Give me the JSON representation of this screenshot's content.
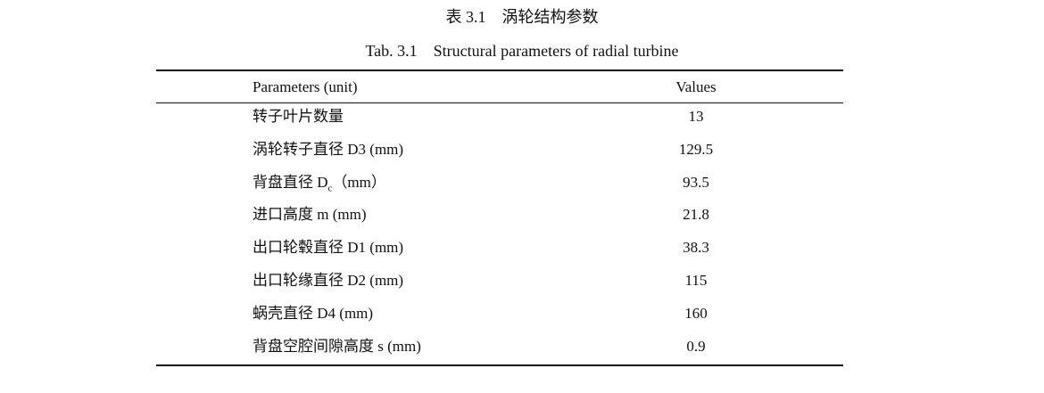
{
  "table": {
    "title": "表 3.1　涡轮结构参数",
    "subtitle": "Tab. 3.1　Structural parameters of radial turbine",
    "header": [
      "Parameters (unit)",
      "Values"
    ],
    "rows": [
      [
        [
          "转子叶片数量"
        ],
        13
      ],
      [
        [
          "涡轮转子直径 D3 (mm)"
        ],
        129.5
      ],
      [
        [
          "背盘直径 D",
          "c",
          "（mm）"
        ],
        93.5
      ],
      [
        [
          "进口高度 m (mm)"
        ],
        21.8
      ],
      [
        [
          "出口轮毂直径 D1 (mm)"
        ],
        38.3
      ],
      [
        [
          "出口轮缘直径 D2 (mm)"
        ],
        115
      ],
      [
        [
          "蜗壳直径 D4 (mm)"
        ],
        160
      ],
      [
        [
          "背盘空腔间隙高度 s (mm)"
        ],
        0.9
      ]
    ]
  }
}
